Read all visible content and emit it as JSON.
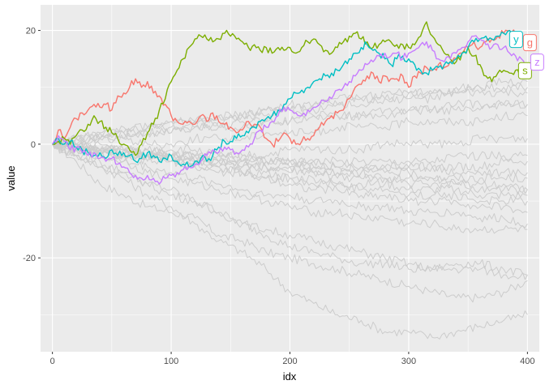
{
  "chart_data": {
    "type": "line",
    "title": "",
    "xlabel": "idx",
    "ylabel": "value",
    "xlim": [
      -10,
      410
    ],
    "ylim": [
      -36.5,
      24.5
    ],
    "x_ticks": [
      0,
      100,
      200,
      300,
      400
    ],
    "x_tick_labels": [
      "0",
      "100",
      "200",
      "300",
      "400"
    ],
    "y_ticks": [
      -20,
      0,
      20
    ],
    "y_tick_labels": [
      "-20",
      "0",
      "20"
    ],
    "grid": true,
    "panel_background": "#ebebeb",
    "background_series_color": "#cccccc",
    "highlighted_series": [
      {
        "name": "g",
        "color": "#f8766d",
        "x": [
          0,
          5,
          10,
          15,
          20,
          25,
          30,
          35,
          40,
          45,
          50,
          55,
          60,
          65,
          70,
          75,
          80,
          85,
          90,
          95,
          100,
          105,
          110,
          115,
          120,
          125,
          130,
          135,
          140,
          145,
          150,
          155,
          160,
          165,
          170,
          175,
          180,
          185,
          190,
          195,
          200,
          205,
          210,
          215,
          220,
          225,
          230,
          235,
          240,
          245,
          250,
          255,
          260,
          265,
          270,
          275,
          280,
          285,
          290,
          295,
          300,
          305,
          310,
          315,
          320,
          325,
          330,
          335,
          340,
          345,
          350,
          355,
          360,
          365,
          370,
          375,
          380,
          385,
          390,
          395,
          400
        ],
        "y": [
          0,
          2.5,
          1,
          3,
          4.5,
          5.5,
          6,
          7,
          6.5,
          7,
          6,
          8.5,
          9,
          10,
          11.5,
          10,
          11,
          9,
          8.5,
          7,
          5,
          4,
          3.5,
          4,
          3.5,
          5,
          4,
          5.5,
          4,
          3.5,
          3,
          2,
          2.5,
          4,
          3.5,
          3,
          1,
          0,
          0.5,
          2,
          1,
          0,
          0.5,
          1,
          1.5,
          3,
          4,
          5,
          5.5,
          6,
          8,
          10,
          10.5,
          12,
          12.5,
          11,
          12,
          11.5,
          11.5,
          12,
          10,
          12,
          12.5,
          13.5,
          13,
          14,
          13.5,
          14.5,
          15,
          16,
          17,
          18,
          17,
          18,
          18.5,
          19,
          19.5,
          20,
          19.5,
          18.5,
          18
        ]
      },
      {
        "name": "s",
        "color": "#7cae00",
        "x": [
          0,
          5,
          10,
          15,
          20,
          25,
          30,
          35,
          40,
          45,
          50,
          55,
          60,
          65,
          70,
          75,
          80,
          85,
          90,
          95,
          100,
          105,
          110,
          115,
          120,
          125,
          130,
          135,
          140,
          145,
          150,
          155,
          160,
          165,
          170,
          175,
          180,
          185,
          190,
          195,
          200,
          205,
          210,
          215,
          220,
          225,
          230,
          235,
          240,
          245,
          250,
          255,
          260,
          265,
          270,
          275,
          280,
          285,
          290,
          295,
          300,
          305,
          310,
          315,
          320,
          325,
          330,
          335,
          340,
          345,
          350,
          355,
          360,
          365,
          370,
          375,
          380,
          385,
          390,
          395,
          400
        ],
        "y": [
          0,
          0.5,
          1,
          0,
          1.5,
          2.5,
          3.5,
          5,
          4,
          3,
          2,
          1,
          0,
          -1,
          -2,
          0,
          2,
          3.5,
          6,
          8,
          11,
          13,
          15,
          17,
          18.5,
          19,
          18.5,
          18,
          18.5,
          19.5,
          19,
          18.5,
          18,
          17,
          17.5,
          16.5,
          17,
          16,
          17,
          16.5,
          17,
          16,
          17,
          18,
          18.5,
          17.5,
          16.5,
          16,
          17,
          18,
          19,
          19.5,
          18.5,
          18,
          17,
          17.5,
          18,
          18,
          17.5,
          17.5,
          17,
          17.5,
          19,
          21.5,
          19,
          17.5,
          16,
          15,
          14.5,
          16,
          17,
          15.5,
          14,
          12,
          11,
          12.5,
          13,
          12.5,
          13,
          12.5,
          11.5
        ]
      },
      {
        "name": "y",
        "color": "#00bfc4",
        "x": [
          0,
          5,
          10,
          15,
          20,
          25,
          30,
          35,
          40,
          45,
          50,
          55,
          60,
          65,
          70,
          75,
          80,
          85,
          90,
          95,
          100,
          105,
          110,
          115,
          120,
          125,
          130,
          135,
          140,
          145,
          150,
          155,
          160,
          165,
          170,
          175,
          180,
          185,
          190,
          195,
          200,
          205,
          210,
          215,
          220,
          225,
          230,
          235,
          240,
          245,
          250,
          255,
          260,
          265,
          270,
          275,
          280,
          285,
          290,
          295,
          300,
          305,
          310,
          315,
          320,
          325,
          330,
          335,
          340,
          345,
          350,
          355,
          360,
          365,
          370,
          375,
          380,
          385,
          390,
          395,
          400
        ],
        "y": [
          0,
          1,
          0,
          0.5,
          -0.5,
          -1,
          -1.5,
          -2,
          -1.5,
          -2.5,
          -1,
          -2,
          -1.5,
          -2,
          -3,
          -2.5,
          -1.5,
          -2,
          -3,
          -2.5,
          -2,
          -3,
          -3.5,
          -4,
          -3,
          -2.5,
          -3,
          -2,
          -0.5,
          0.5,
          0.5,
          1,
          1.5,
          2,
          3,
          4,
          4.5,
          5,
          6,
          7,
          8,
          9,
          9.5,
          10,
          11,
          11.5,
          12,
          12.5,
          13,
          14,
          15,
          16,
          17,
          17.5,
          16.5,
          16,
          15,
          14,
          15,
          15.5,
          15,
          14,
          13,
          12.5,
          13,
          13.5,
          14,
          14.5,
          15,
          16,
          17,
          18,
          18.5,
          19,
          18.5,
          19,
          19.5,
          20,
          19,
          18,
          18
        ]
      },
      {
        "name": "z",
        "color": "#c77cff",
        "x": [
          0,
          5,
          10,
          15,
          20,
          25,
          30,
          35,
          40,
          45,
          50,
          55,
          60,
          65,
          70,
          75,
          80,
          85,
          90,
          95,
          100,
          105,
          110,
          115,
          120,
          125,
          130,
          135,
          140,
          145,
          150,
          155,
          160,
          165,
          170,
          175,
          180,
          185,
          190,
          195,
          200,
          205,
          210,
          215,
          220,
          225,
          230,
          235,
          240,
          245,
          250,
          255,
          260,
          265,
          270,
          275,
          280,
          285,
          290,
          295,
          300,
          305,
          310,
          315,
          320,
          325,
          330,
          335,
          340,
          345,
          350,
          355,
          360,
          365,
          370,
          375,
          380,
          385,
          390,
          395,
          400
        ],
        "y": [
          0,
          1.5,
          0.5,
          -1,
          -0.5,
          -1.5,
          -2,
          -1.5,
          -2.5,
          -3,
          -2.5,
          -3.5,
          -4,
          -5,
          -5.5,
          -6,
          -5.5,
          -6,
          -7,
          -6,
          -5.5,
          -5,
          -4.5,
          -4,
          -3.5,
          -3,
          -2,
          -1,
          -1.5,
          -0.5,
          -1,
          -1.5,
          -1,
          -0.5,
          1,
          2.5,
          3,
          4,
          5,
          6.5,
          6,
          5.5,
          5,
          6,
          6.5,
          7,
          7.5,
          8,
          9.5,
          10,
          11,
          12,
          13,
          14,
          14.5,
          15.5,
          16,
          15.5,
          16,
          15,
          16,
          16.5,
          17.5,
          18,
          16.5,
          15,
          14.5,
          15,
          16,
          17,
          18,
          19,
          18.5,
          17.5,
          17,
          17.5,
          17,
          16,
          15.5,
          15,
          14
        ]
      }
    ],
    "background_series_x": [
      0,
      20,
      40,
      60,
      80,
      100,
      120,
      140,
      160,
      180,
      200,
      220,
      240,
      260,
      280,
      300,
      320,
      340,
      360,
      380,
      400
    ],
    "background_series_y": [
      [
        0,
        -3,
        -7,
        -9,
        -11,
        -12,
        -13,
        -16,
        -17,
        -19,
        -20,
        -21,
        -22,
        -23,
        -24,
        -25,
        -26,
        -27,
        -27,
        -26,
        -24
      ],
      [
        0,
        -2,
        -4,
        -6,
        -9,
        -11,
        -14,
        -17,
        -19,
        -22,
        -26,
        -28,
        -30,
        -31,
        -33,
        -33,
        -34,
        -33,
        -32,
        -31,
        -30
      ],
      [
        0,
        -2,
        -3,
        -5,
        -7,
        -8,
        -10,
        -12,
        -14,
        -16,
        -18,
        -19,
        -20,
        -21,
        -21,
        -22,
        -22,
        -21,
        -21,
        -22,
        -23
      ],
      [
        0,
        -2,
        -4,
        -5,
        -7,
        -9,
        -10,
        -12,
        -14,
        -15,
        -16,
        -17,
        -18,
        -19,
        -20,
        -21,
        -22,
        -22,
        -22,
        -23,
        -23
      ],
      [
        0,
        -1,
        -2,
        -3,
        -5,
        -6,
        -7,
        -8,
        -9,
        -10,
        -11,
        -12,
        -12,
        -13,
        -13,
        -14,
        -14,
        -15,
        -15,
        -15,
        -15
      ],
      [
        0,
        -1,
        -2,
        -3,
        -4,
        -5,
        -6,
        -7,
        -8,
        -9,
        -9,
        -10,
        -10,
        -11,
        -11,
        -12,
        -12,
        -12,
        -13,
        -13,
        -14
      ],
      [
        0,
        -1,
        -1,
        -2,
        -3,
        -3,
        -4,
        -5,
        -5,
        -6,
        -7,
        -8,
        -8,
        -9,
        -9,
        -10,
        -10,
        -10,
        -11,
        -11,
        -12
      ],
      [
        0,
        0,
        -1,
        -2,
        -2,
        -3,
        -4,
        -4,
        -5,
        -6,
        -6,
        -7,
        -7,
        -8,
        -8,
        -9,
        -9,
        -9,
        -10,
        -10,
        -10
      ],
      [
        0,
        -1,
        -1,
        -2,
        -2,
        -3,
        -3,
        -4,
        -5,
        -5,
        -6,
        -6,
        -7,
        -7,
        -7,
        -8,
        -8,
        -8,
        -9,
        -9,
        -9
      ],
      [
        0,
        0,
        -1,
        -1,
        -2,
        -2,
        -3,
        -3,
        -4,
        -4,
        -5,
        -5,
        -6,
        -6,
        -6,
        -7,
        -7,
        -7,
        -8,
        -8,
        -8
      ],
      [
        0,
        -1,
        -1,
        -2,
        -2,
        -2,
        -3,
        -3,
        -3,
        -4,
        -4,
        -4,
        -5,
        -5,
        -5,
        -5,
        -6,
        -6,
        -6,
        -6,
        -6
      ],
      [
        0,
        -1,
        -1,
        -1,
        -2,
        -2,
        -2,
        -3,
        -3,
        -3,
        -3,
        -4,
        -4,
        -4,
        -4,
        -4,
        -4,
        -4,
        -4,
        -3,
        -3
      ],
      [
        0,
        0,
        -1,
        -1,
        -1,
        -2,
        -2,
        -2,
        -2,
        -3,
        -3,
        -3,
        -3,
        -3,
        -3,
        -3,
        -3,
        -2,
        -2,
        -2,
        -2
      ],
      [
        0,
        -1,
        0,
        -1,
        -1,
        -1,
        -1,
        -2,
        -2,
        -2,
        -1,
        -1,
        -1,
        -1,
        0,
        0,
        0,
        0,
        1,
        1,
        1
      ],
      [
        0,
        0,
        1,
        1,
        0,
        0,
        1,
        1,
        1,
        2,
        2,
        2,
        3,
        3,
        3,
        4,
        4,
        4,
        4,
        5,
        5
      ],
      [
        0,
        1,
        1,
        2,
        2,
        2,
        3,
        3,
        4,
        4,
        4,
        5,
        5,
        5,
        6,
        6,
        6,
        7,
        7,
        7,
        7
      ],
      [
        0,
        1,
        1,
        2,
        3,
        3,
        4,
        4,
        5,
        5,
        6,
        6,
        7,
        7,
        8,
        8,
        8,
        9,
        9,
        9,
        9
      ],
      [
        0,
        1,
        2,
        2,
        3,
        4,
        4,
        5,
        5,
        6,
        6,
        7,
        7,
        8,
        8,
        9,
        9,
        9,
        10,
        10,
        10
      ],
      [
        0,
        1,
        2,
        3,
        3,
        4,
        4,
        5,
        5,
        6,
        7,
        7,
        8,
        8,
        9,
        9,
        9,
        10,
        10,
        11,
        11
      ],
      [
        0,
        0,
        1,
        1,
        2,
        2,
        3,
        3,
        3,
        4,
        4,
        5,
        5,
        5,
        5,
        6,
        6,
        6,
        6,
        7,
        7
      ],
      [
        0,
        -1,
        -1,
        -2,
        -2,
        -2,
        -3,
        -3,
        -4,
        -4,
        -4,
        -5,
        -5,
        -5,
        -6,
        -6,
        -6,
        -7,
        -7,
        -7,
        -8
      ],
      [
        0,
        0,
        -1,
        -1,
        -1,
        -2,
        -2,
        -2,
        -3,
        -3,
        -3,
        -3,
        -4,
        -4,
        -4,
        -4,
        -4,
        -5,
        -5,
        -5,
        -5
      ]
    ]
  }
}
